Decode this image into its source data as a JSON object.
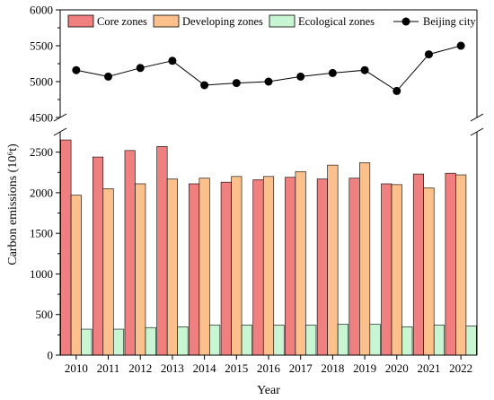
{
  "chart_data": {
    "type": "bar",
    "xlabel": "Year",
    "ylabel": "Carbon emissions (10⁶t)",
    "categories": [
      "2010",
      "2011",
      "2012",
      "2013",
      "2014",
      "2015",
      "2016",
      "2017",
      "2018",
      "2019",
      "2020",
      "2021",
      "2022"
    ],
    "series": [
      {
        "name": "Core zones",
        "type": "bar",
        "color": "#f08080",
        "values": [
          2650,
          2440,
          2520,
          2570,
          2110,
          2130,
          2160,
          2190,
          2170,
          2180,
          2110,
          2230,
          2240
        ]
      },
      {
        "name": "Developing zones",
        "type": "bar",
        "color": "#fcc08c",
        "values": [
          1970,
          2050,
          2110,
          2170,
          2180,
          2200,
          2200,
          2260,
          2340,
          2370,
          2100,
          2060,
          2220
        ]
      },
      {
        "name": "Ecological zones",
        "type": "bar",
        "color": "#c8f5d2",
        "values": [
          320,
          320,
          340,
          350,
          370,
          370,
          370,
          370,
          380,
          380,
          350,
          370,
          360
        ]
      },
      {
        "name": "Beijing city",
        "type": "line",
        "color": "#000000",
        "values": [
          5160,
          5070,
          5190,
          5290,
          4950,
          4980,
          5000,
          5070,
          5120,
          5160,
          4870,
          5380,
          5500
        ]
      }
    ],
    "y_axis_lower": {
      "range": [
        0,
        2750
      ],
      "ticks": [
        0,
        500,
        1000,
        1500,
        2000,
        2500
      ]
    },
    "y_axis_upper": {
      "range": [
        4500,
        6000
      ],
      "ticks": [
        4500,
        5000,
        5500,
        6000
      ]
    },
    "axis_break": true,
    "legend_position": "top"
  }
}
